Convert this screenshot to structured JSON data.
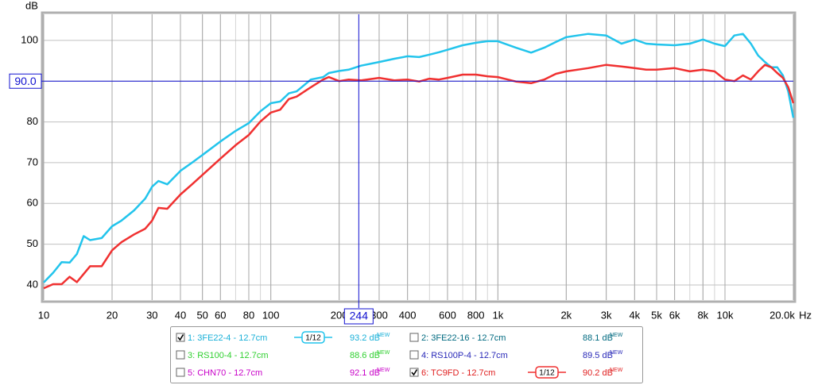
{
  "chart_data": {
    "type": "line",
    "y_label": "dB",
    "x_unit": "Hz",
    "log_x": true,
    "grid": true,
    "minor_grid": true,
    "xlim": [
      10,
      20000
    ],
    "ylim": [
      36.3,
      106.4
    ],
    "xticks": [
      10,
      20,
      30,
      40,
      50,
      60,
      80,
      100,
      200,
      300,
      400,
      600,
      800,
      {
        "value": 1000,
        "label": "1k"
      },
      {
        "value": 2000,
        "label": "2k"
      },
      {
        "value": 3000,
        "label": "3k"
      },
      {
        "value": 4000,
        "label": "4k"
      },
      {
        "value": 5000,
        "label": "5k"
      },
      {
        "value": 6000,
        "label": "6k"
      },
      {
        "value": 8000,
        "label": "8k"
      },
      {
        "value": 10000,
        "label": "10k"
      },
      {
        "value": 20000,
        "label": "20.0k"
      }
    ],
    "yticks": [
      40,
      50,
      60,
      70,
      80,
      90,
      100
    ],
    "cursor": {
      "x": {
        "value": 244,
        "label": "244"
      },
      "y": {
        "value": 90,
        "label": "90.0"
      }
    },
    "x": [
      10,
      11,
      12,
      13,
      14,
      15,
      16,
      18,
      20,
      22,
      25,
      28,
      30,
      32,
      35,
      40,
      45,
      50,
      60,
      70,
      80,
      90,
      100,
      110,
      120,
      130,
      150,
      170,
      180,
      200,
      220,
      250,
      300,
      350,
      400,
      450,
      500,
      550,
      600,
      700,
      800,
      900,
      1000,
      1200,
      1400,
      1600,
      1800,
      2000,
      2500,
      3000,
      3500,
      4000,
      4500,
      5000,
      6000,
      7000,
      8000,
      9000,
      10000,
      11000,
      12000,
      13000,
      14000,
      15000,
      16000,
      17000,
      18000,
      19000,
      20000
    ],
    "series": [
      {
        "name": "1: 3FE22-4 - 12.7cm",
        "color": "#22c4ec",
        "text_color": "#18b0d8",
        "checked": true,
        "smoothing": "1/12",
        "level": 93.2,
        "level_label": "93.2 dB",
        "level_tag": "NEW",
        "values": [
          40.6,
          43,
          45.6,
          45.5,
          47.6,
          52,
          51,
          51.5,
          54.4,
          55.8,
          58.3,
          61.2,
          64.1,
          65.5,
          64.7,
          68,
          70,
          71.9,
          75.2,
          77.8,
          79.7,
          82.6,
          84.6,
          85,
          87,
          87.5,
          90.4,
          91,
          92,
          92.5,
          92.8,
          93.8,
          94.7,
          95.5,
          96.1,
          95.9,
          96.5,
          97.1,
          97.7,
          98.8,
          99.4,
          99.8,
          99.8,
          98.2,
          97,
          98.2,
          99.6,
          100.8,
          101.6,
          101.2,
          99.2,
          100.2,
          99.2,
          99,
          98.8,
          99.2,
          100.2,
          99.2,
          98.6,
          101.2,
          101.6,
          99.2,
          96.3,
          94.7,
          93.4,
          93.4,
          91.4,
          87.5,
          81
        ]
      },
      {
        "name": "2: 3FE22-16 - 12.7cm",
        "color": "#006a80",
        "text_color": "#006a80",
        "checked": false,
        "level": 88.1,
        "level_label": "88.1 dB",
        "level_tag": "NEW"
      },
      {
        "name": "3: RS100-4 - 12.7cm",
        "color": "#30d030",
        "text_color": "#30d030",
        "checked": false,
        "level": 88.6,
        "level_label": "88.6 dB",
        "level_tag": "NEW"
      },
      {
        "name": "4: RS100P-4 - 12.7cm",
        "color": "#2828b8",
        "text_color": "#2828b8",
        "checked": false,
        "level": 89.5,
        "level_label": "89.5 dB",
        "level_tag": "NEW"
      },
      {
        "name": "5: CHN70 - 12.7cm",
        "color": "#c800c8",
        "text_color": "#c800c8",
        "checked": false,
        "level": 92.1,
        "level_label": "92.1 dB",
        "level_tag": "NEW"
      },
      {
        "name": "6: TC9FD - 12.7cm",
        "color": "#f03030",
        "text_color": "#e02020",
        "checked": true,
        "smoothing": "1/12",
        "level": 90.2,
        "level_label": "90.2 dB",
        "level_tag": "NEW",
        "values": [
          39.2,
          40.2,
          40.2,
          42,
          40.7,
          42.7,
          44.6,
          44.6,
          48.5,
          50.5,
          52.4,
          53.8,
          55.8,
          58.9,
          58.7,
          62.2,
          64.7,
          67,
          71,
          74.3,
          76.8,
          80.1,
          82.3,
          83,
          85.6,
          86.2,
          88.5,
          90.4,
          91,
          90,
          90.4,
          90.2,
          90.8,
          90.2,
          90.4,
          89.9,
          90.6,
          90.4,
          90.8,
          91.6,
          91.6,
          91.2,
          91,
          89.9,
          89.5,
          90.4,
          91.8,
          92.4,
          93.2,
          94,
          93.6,
          93.2,
          92.8,
          92.8,
          93.2,
          92.4,
          92.8,
          92.4,
          90.4,
          90,
          91.4,
          90.4,
          92.4,
          94,
          93.4,
          92,
          90.8,
          88.5,
          84.6
        ]
      }
    ]
  }
}
